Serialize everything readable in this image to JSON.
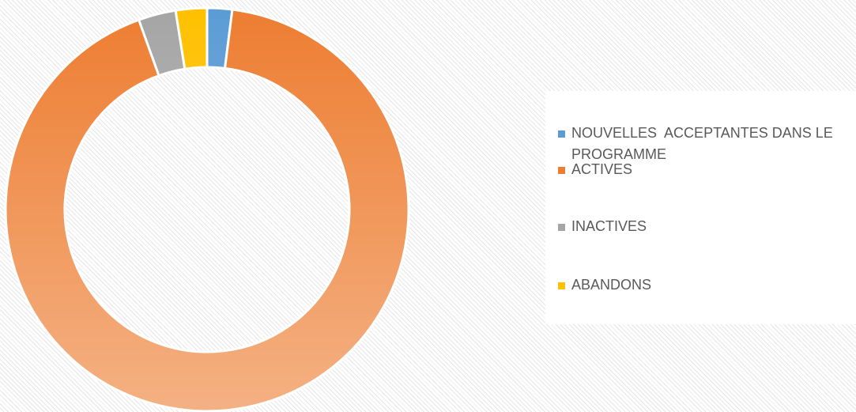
{
  "chart_data": {
    "type": "donut",
    "categories": [
      "NOUVELLES  ACCEPTANTES DANS LE PROGRAMME",
      "ACTIVES",
      "INACTIVES",
      "ABANDONS"
    ],
    "values": [
      2,
      92.5,
      3,
      2.5
    ],
    "colors": [
      "#5b9bd5",
      "#ed7d31",
      "#a5a5a5",
      "#ffc000"
    ],
    "legend": "right"
  }
}
